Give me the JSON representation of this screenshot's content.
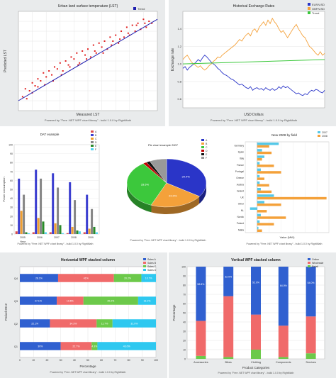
{
  "chart_data": [
    {
      "type": "scatter",
      "title": "Urban land surface temperature (LST)",
      "xlabel": "Measured LST",
      "ylabel": "Predicted LST",
      "footer": "Powered by \"Free .NET WPF chart library\" - build 1.0.0 by RightMath",
      "legend": [
        "Trend"
      ],
      "points": [
        [
          3,
          14
        ],
        [
          5,
          22
        ],
        [
          8,
          20
        ],
        [
          10,
          28
        ],
        [
          12,
          25
        ],
        [
          14,
          32
        ],
        [
          16,
          30
        ],
        [
          18,
          38
        ],
        [
          20,
          34
        ],
        [
          22,
          40
        ],
        [
          24,
          36
        ],
        [
          26,
          44
        ],
        [
          28,
          42
        ],
        [
          30,
          48
        ],
        [
          32,
          40
        ],
        [
          34,
          50
        ],
        [
          36,
          46
        ],
        [
          38,
          54
        ],
        [
          40,
          52
        ],
        [
          42,
          58
        ],
        [
          44,
          48
        ],
        [
          46,
          60
        ],
        [
          48,
          56
        ],
        [
          50,
          62
        ],
        [
          52,
          54
        ],
        [
          54,
          66
        ],
        [
          56,
          58
        ],
        [
          58,
          68
        ],
        [
          60,
          64
        ],
        [
          62,
          70
        ],
        [
          64,
          62
        ],
        [
          66,
          74
        ],
        [
          68,
          70
        ],
        [
          70,
          76
        ],
        [
          72,
          68
        ],
        [
          74,
          80
        ],
        [
          76,
          74
        ],
        [
          78,
          84
        ],
        [
          80,
          76
        ],
        [
          82,
          86
        ],
        [
          84,
          80
        ],
        [
          86,
          88
        ],
        [
          88,
          82
        ],
        [
          90,
          92
        ],
        [
          92,
          84
        ],
        [
          94,
          90
        ],
        [
          96,
          88
        ],
        [
          6,
          12
        ],
        [
          10,
          18
        ],
        [
          14,
          24
        ],
        [
          19,
          26
        ],
        [
          25,
          30
        ],
        [
          31,
          36
        ],
        [
          37,
          44
        ],
        [
          43,
          46
        ],
        [
          49,
          52
        ],
        [
          55,
          60
        ],
        [
          61,
          58
        ],
        [
          67,
          66
        ],
        [
          73,
          72
        ],
        [
          79,
          78
        ],
        [
          85,
          86
        ],
        [
          91,
          88
        ]
      ],
      "trend": [
        [
          0,
          10
        ],
        [
          100,
          92
        ]
      ]
    },
    {
      "type": "line",
      "title": "Historical Exchange Rates",
      "xlabel": "USD Dollars",
      "ylabel": "Exchange rate",
      "footer": "Powered by \"Free .NET WPF chart library\" - build 1.0.0 by RightMath",
      "legend": [
        "EUR/USD",
        "GBP/USD",
        "Trend"
      ],
      "colors": [
        "#2a35c8",
        "#f4a13a",
        "#3cc83c"
      ],
      "ylim": [
        0.5,
        1.6
      ],
      "y_ticks": [
        "1.4",
        "1.2",
        "1.0",
        "0.8",
        "0.6"
      ],
      "series": [
        {
          "name": "EUR/USD",
          "values": [
            0.95,
            0.97,
            0.93,
            0.96,
            0.98,
            1.0,
            1.02,
            1.05,
            1.03,
            1.07,
            1.1,
            1.08,
            1.05,
            1.02,
            1.0,
            0.98,
            0.95,
            0.93,
            0.9,
            0.88,
            0.87,
            0.85,
            0.83,
            0.82,
            0.8,
            0.78,
            0.76,
            0.77,
            0.75,
            0.73,
            0.72,
            0.74,
            0.7,
            0.72,
            0.73,
            0.71,
            0.72,
            0.7,
            0.73,
            0.71,
            0.7,
            0.72,
            0.7,
            0.71,
            0.74,
            0.72,
            0.75,
            0.73,
            0.74,
            0.72,
            0.7,
            0.68,
            0.66,
            0.67,
            0.65,
            0.64,
            0.66,
            0.65,
            0.68,
            0.7,
            0.69,
            0.71,
            0.7,
            0.68,
            0.67,
            0.7
          ]
        },
        {
          "name": "GBP/USD",
          "values": [
            1.05,
            1.08,
            1.1,
            1.06,
            1.02,
            1.0,
            0.98,
            0.96,
            0.98,
            0.95,
            0.93,
            0.95,
            0.98,
            1.0,
            1.03,
            1.05,
            1.08,
            1.07,
            1.1,
            1.12,
            1.14,
            1.16,
            1.18,
            1.2,
            1.22,
            1.25,
            1.28,
            1.26,
            1.3,
            1.33,
            1.35,
            1.32,
            1.38,
            1.4,
            1.36,
            1.42,
            1.45,
            1.48,
            1.44,
            1.5,
            1.46,
            1.52,
            1.48,
            1.45,
            1.4,
            1.36,
            1.38,
            1.34,
            1.3,
            1.34,
            1.38,
            1.42,
            1.45,
            1.4,
            1.36,
            1.32,
            1.3,
            1.25,
            1.2,
            1.18,
            1.15,
            1.12,
            1.1,
            1.14,
            1.1,
            1.12
          ]
        }
      ],
      "trend": [
        1.0,
        1.05
      ]
    },
    {
      "type": "bar",
      "title": "DAT example",
      "ylabel": "Power consumption",
      "xlabel": "Year",
      "footer": "Powered by \"Free .NET WPF chart library\" - build 1.0.0 by RightMath",
      "categories": [
        "2005",
        "2006",
        "2007",
        "2008",
        "2009"
      ],
      "series": [
        {
          "name": "A",
          "color": "#d94d4d",
          "values": [
            3,
            2,
            2,
            1,
            2
          ]
        },
        {
          "name": "B",
          "color": "#3c3fd0",
          "values": [
            62,
            72,
            68,
            58,
            44
          ]
        },
        {
          "name": "C",
          "color": "#f0a030",
          "values": [
            26,
            18,
            12,
            8,
            6
          ]
        },
        {
          "name": "D",
          "color": "#888888",
          "values": [
            44,
            62,
            52,
            38,
            28
          ]
        },
        {
          "name": "E",
          "color": "#2a8a2a",
          "values": [
            2,
            14,
            10,
            4,
            8
          ]
        },
        {
          "name": "F",
          "color": "#55d4f0",
          "values": [
            1,
            2,
            1,
            3,
            2
          ]
        }
      ],
      "ylim": [
        0,
        100
      ]
    },
    {
      "type": "pie",
      "title": "Pie chart example 2007",
      "footer": "Powered by \"Free .NET WPF chart library\" - build 1.0.0 by RightMath",
      "slices": [
        {
          "label": "A",
          "value": 34.4,
          "text": "34.4%",
          "color": "#2a35c8"
        },
        {
          "label": "B",
          "value": 22.0,
          "text": "22.0%",
          "color": "#f4a13a"
        },
        {
          "label": "C",
          "value": 33.6,
          "text": "33.6%",
          "color": "#3cc83c"
        },
        {
          "label": "D",
          "value": 1.5,
          "text": "",
          "color": "#c00000"
        },
        {
          "label": "E",
          "value": 1.5,
          "text": "",
          "color": "#111111"
        },
        {
          "label": "F",
          "value": 7.0,
          "text": "",
          "color": "#999999"
        }
      ]
    },
    {
      "type": "bar",
      "orientation": "horizontal",
      "title": "New 2008 by field",
      "xlabel": "Value (MW)",
      "footer": "Powered by \"Free .NET WPF chart library\" - build 1.0.0 by RightMath",
      "legend": [
        "2007",
        "2008"
      ],
      "colors": [
        "#55c8e8",
        "#f4a13a"
      ],
      "categories": [
        "Germany",
        "Spain",
        "Italy",
        "France",
        "Portugal",
        "Greece",
        "Austria",
        "Ireland",
        "UK",
        "Other",
        "NL",
        "Nordic",
        "Poland",
        "Malta"
      ],
      "series": [
        {
          "name": "2007",
          "values": [
            18,
            4,
            6,
            2,
            3,
            2,
            2,
            3,
            14,
            6,
            -6,
            3,
            2,
            1
          ]
        },
        {
          "name": "2008",
          "values": [
            10,
            12,
            4,
            14,
            20,
            6,
            10,
            12,
            58,
            20,
            8,
            24,
            14,
            4
          ]
        }
      ],
      "xlim": [
        -10,
        60
      ]
    },
    {
      "type": "bar",
      "orientation": "horizontal",
      "stacked": "100%",
      "title": "Horizontal WPF stacked column",
      "xlabel": "Percentage",
      "ylabel": "Period 2012",
      "footer": "Powered by \"Free .NET WPF chart library\" - build 1.0.0 by RightMath",
      "categories": [
        "Q4",
        "Q3",
        "Q2",
        "Q1"
      ],
      "series": [
        {
          "name": "Sales A",
          "color": "#3060d0",
          "values": [
            28.1,
            27.1,
            22.1,
            30.0
          ],
          "labels": [
            "28.1%",
            "27.1%",
            "22.1%",
            "30%"
          ]
        },
        {
          "name": "Sales B",
          "color": "#f06a6a",
          "values": [
            41.0,
            19.6,
            34.3,
            22.7
          ],
          "labels": [
            "41%",
            "19.6%",
            "34.3%",
            "22.7%"
          ]
        },
        {
          "name": "Sales C",
          "color": "#6cc94a",
          "values": [
            20.2,
            40.2,
            11.7,
            4.3
          ],
          "labels": [
            "20.2%",
            "40.2%",
            "11.7%",
            "4.3%"
          ]
        },
        {
          "name": "Sales D",
          "color": "#2ec8f0",
          "values": [
            10.7,
            13.1,
            31.9,
            43.0
          ],
          "labels": [
            "10.7%",
            "13.1%",
            "31.9%",
            "43.0%"
          ]
        }
      ],
      "x_ticks": [
        "0",
        "10",
        "20",
        "30",
        "40",
        "50",
        "60",
        "70",
        "80",
        "90",
        "100"
      ]
    },
    {
      "type": "bar",
      "stacked": "100%",
      "title": "Vertical WPF stacked column",
      "xlabel": "Product Categories",
      "ylabel": "Percentage",
      "footer": "Powered by \"Free .NET WPF chart library\" - build 1.0.0 by RightMath",
      "categories": [
        "Accessories",
        "Bikes",
        "Clothing",
        "Components",
        "Services"
      ],
      "series": [
        {
          "name": "Online",
          "color": "#3060d0",
          "values": [
            58.8,
            32.0,
            52.0,
            64.0,
            54.0
          ],
          "labels": [
            "58.8%",
            "32.0%",
            "52.0%",
            "64.0%",
            "54.0%"
          ]
        },
        {
          "name": "Wholesale",
          "color": "#f06a6a",
          "values": [
            38.0,
            66.0,
            38.0,
            34.0,
            40.0
          ],
          "labels": [
            "",
            "",
            "",
            "",
            ""
          ]
        },
        {
          "name": "Retail",
          "color": "#6cc94a",
          "values": [
            3.2,
            2.0,
            10.0,
            2.0,
            6.0
          ],
          "labels": [
            "",
            "",
            "",
            "",
            ""
          ]
        }
      ],
      "y_ticks": [
        "0",
        "10",
        "20",
        "30",
        "40",
        "50",
        "60",
        "70",
        "80",
        "90",
        "100"
      ]
    }
  ]
}
